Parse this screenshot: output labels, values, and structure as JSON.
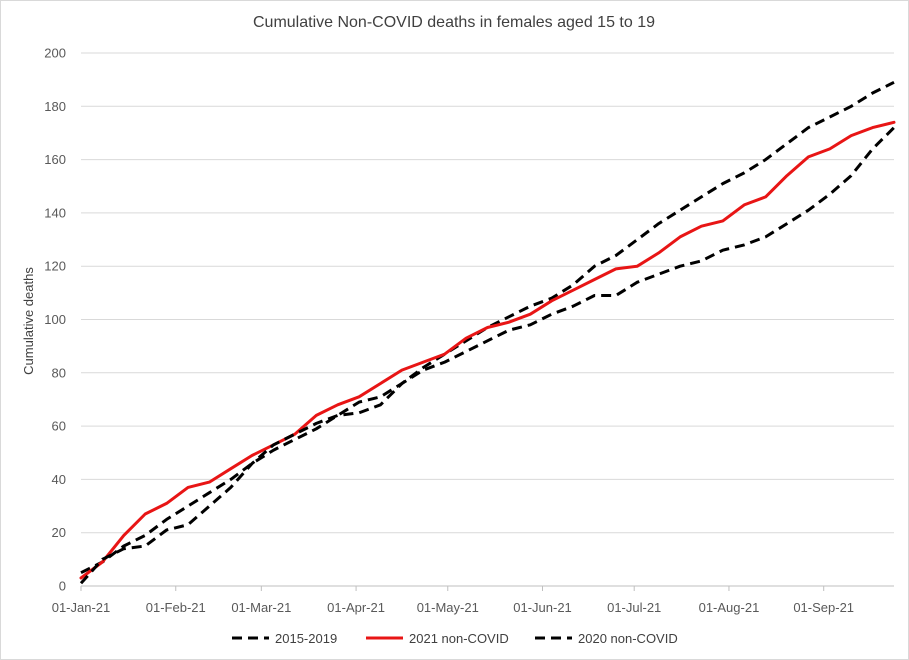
{
  "chart_data": {
    "type": "line",
    "title": "Cumulative  Non-COVID deaths in females aged  15 to 19",
    "xlabel": "",
    "ylabel": "Cumulative deaths",
    "ylim": [
      0,
      200
    ],
    "yticks": [
      0,
      20,
      40,
      60,
      80,
      100,
      120,
      140,
      160,
      180,
      200
    ],
    "x_unit": "days since 01-Jan-21",
    "xlim": [
      0,
      266
    ],
    "xticks": [
      {
        "day": 0,
        "label": "01-Jan-21"
      },
      {
        "day": 31,
        "label": "01-Feb-21"
      },
      {
        "day": 59,
        "label": "01-Mar-21"
      },
      {
        "day": 90,
        "label": "01-Apr-21"
      },
      {
        "day": 120,
        "label": "01-May-21"
      },
      {
        "day": 151,
        "label": "01-Jun-21"
      },
      {
        "day": 181,
        "label": "01-Jul-21"
      },
      {
        "day": 212,
        "label": "01-Aug-21"
      },
      {
        "day": 243,
        "label": "01-Sep-21"
      }
    ],
    "grid": true,
    "legend_position": "bottom",
    "series": [
      {
        "name": "2015-2019",
        "color": "#000000",
        "style": "dashed",
        "x": [
          0,
          7,
          14,
          21,
          28,
          35,
          42,
          49,
          56,
          63,
          70,
          77,
          84,
          91,
          98,
          105,
          112,
          119,
          126,
          133,
          140,
          147,
          154,
          161,
          168,
          175,
          182,
          189,
          196,
          203,
          210,
          217,
          224,
          231,
          238,
          245,
          252,
          259,
          266
        ],
        "values": [
          5,
          9,
          15,
          19,
          25,
          30,
          35,
          40,
          46,
          51,
          55,
          59,
          64,
          69,
          71,
          76,
          82,
          87,
          92,
          97,
          101,
          105,
          108,
          113,
          120,
          124,
          130,
          136,
          141,
          146,
          151,
          155,
          160,
          166,
          172,
          176,
          180,
          185,
          189
        ]
      },
      {
        "name": "2021 non-COVID",
        "color": "#e81515",
        "style": "solid",
        "x": [
          0,
          7,
          14,
          21,
          28,
          35,
          42,
          49,
          56,
          63,
          70,
          77,
          84,
          91,
          98,
          105,
          112,
          119,
          126,
          133,
          140,
          147,
          154,
          161,
          168,
          175,
          182,
          189,
          196,
          203,
          210,
          217,
          224,
          231,
          238,
          245,
          252,
          259,
          266
        ],
        "values": [
          3,
          9,
          19,
          27,
          31,
          37,
          39,
          44,
          49,
          53,
          57,
          64,
          68,
          71,
          76,
          81,
          84,
          87,
          93,
          97,
          99,
          102,
          107,
          111,
          115,
          119,
          120,
          125,
          131,
          135,
          137,
          143,
          146,
          154,
          161,
          164,
          169,
          172,
          174
        ]
      },
      {
        "name": "2020 non-COVID",
        "color": "#000000",
        "style": "dashed",
        "x": [
          0,
          7,
          14,
          21,
          28,
          35,
          42,
          49,
          56,
          63,
          70,
          77,
          84,
          91,
          98,
          105,
          112,
          119,
          126,
          133,
          140,
          147,
          154,
          161,
          168,
          175,
          182,
          189,
          196,
          203,
          210,
          217,
          224,
          231,
          238,
          245,
          252,
          259,
          266
        ],
        "values": [
          1,
          10,
          14,
          15,
          21,
          23,
          30,
          37,
          46,
          53,
          57,
          61,
          64,
          65,
          68,
          76,
          81,
          84,
          88,
          92,
          96,
          98,
          102,
          105,
          109,
          109,
          114,
          117,
          120,
          122,
          126,
          128,
          131,
          136,
          141,
          147,
          154,
          164,
          172
        ]
      }
    ]
  }
}
